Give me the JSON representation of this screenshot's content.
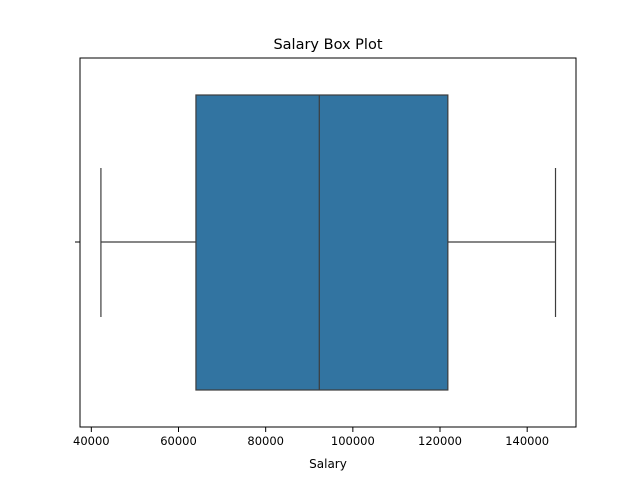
{
  "chart_data": {
    "type": "boxplot",
    "title": "Salary Box Plot",
    "xlabel": "Salary",
    "ylabel": "",
    "orientation": "horizontal",
    "xlim": [
      37400,
      151200
    ],
    "xticks": [
      40000,
      60000,
      80000,
      100000,
      120000,
      140000
    ],
    "xtick_labels": [
      "40000",
      "60000",
      "80000",
      "100000",
      "120000",
      "140000"
    ],
    "grid": false,
    "box": {
      "whisker_low": 42200,
      "q1": 64000,
      "median": 92300,
      "q3": 121800,
      "whisker_high": 146500
    },
    "colors": {
      "box_fill": "#3274a1",
      "line": "#3d3d3d"
    }
  }
}
